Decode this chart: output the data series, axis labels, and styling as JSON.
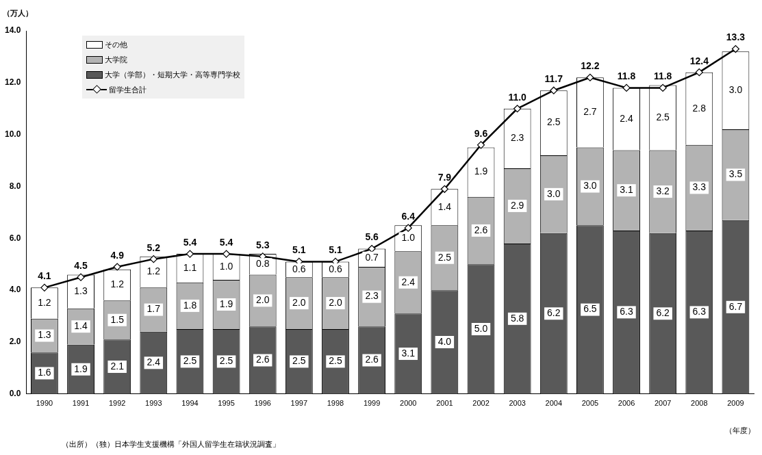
{
  "chart_data": {
    "type": "bar",
    "stacked": true,
    "ylabel": "（万人）",
    "xlabel": "（年度）",
    "categories": [
      "1990",
      "1991",
      "1992",
      "1993",
      "1994",
      "1995",
      "1996",
      "1997",
      "1998",
      "1999",
      "2000",
      "2001",
      "2002",
      "2003",
      "2004",
      "2005",
      "2006",
      "2007",
      "2008",
      "2009"
    ],
    "series": [
      {
        "name": "大学（学部）・短期大学・高等専門学校",
        "color": "#595959",
        "values": [
          1.6,
          1.9,
          2.1,
          2.4,
          2.5,
          2.5,
          2.6,
          2.5,
          2.5,
          2.6,
          3.1,
          4.0,
          5.0,
          5.8,
          6.2,
          6.5,
          6.3,
          6.2,
          6.3,
          6.7
        ],
        "value_labels": [
          "1.6",
          "1.9",
          "2.1",
          "2.4",
          "2.5",
          "2.5",
          "2.6",
          "2.5",
          "2.5",
          "2.6",
          "3.1",
          "4.0",
          "5.0",
          "5.8",
          "6.2",
          "6.5",
          "6.3",
          "6.2",
          "6.3",
          "6.7"
        ]
      },
      {
        "name": "大学院",
        "color": "#b3b3b3",
        "values": [
          1.3,
          1.4,
          1.5,
          1.7,
          1.8,
          1.9,
          2.0,
          2.0,
          2.0,
          2.3,
          2.4,
          2.5,
          2.6,
          2.9,
          3.0,
          3.0,
          3.1,
          3.2,
          3.3,
          3.5
        ],
        "value_labels": [
          "1.3",
          "1.4",
          "1.5",
          "1.7",
          "1.8",
          "1.9",
          "2.0",
          "2.0",
          "2.0",
          "2.3",
          "2.4",
          "2.5",
          "2.6",
          "2.9",
          "3.0",
          "3.0",
          "3.1",
          "3.2",
          "3.3",
          "3.5"
        ]
      },
      {
        "name": "その他",
        "color": "#ffffff",
        "values": [
          1.2,
          1.3,
          1.2,
          1.2,
          1.1,
          1.0,
          0.8,
          0.6,
          0.6,
          0.7,
          1.0,
          1.4,
          1.9,
          2.3,
          2.5,
          2.7,
          2.4,
          2.5,
          2.8,
          3.0
        ],
        "value_labels": [
          "1.2",
          "1.3",
          "1.2",
          "1.2",
          "1.1",
          "1.0",
          "0.8",
          "0.6",
          "0.6",
          "0.7",
          "1.0",
          "1.4",
          "1.9",
          "2.3",
          "2.5",
          "2.7",
          "2.4",
          "2.5",
          "2.8",
          "3.0"
        ]
      },
      {
        "name": "留学生合計",
        "type": "line",
        "color": "#000000",
        "marker": "diamond",
        "values": [
          4.1,
          4.5,
          4.9,
          5.2,
          5.4,
          5.4,
          5.3,
          5.1,
          5.1,
          5.6,
          6.4,
          7.9,
          9.6,
          11.0,
          11.7,
          12.2,
          11.8,
          11.8,
          12.4,
          13.3
        ],
        "value_labels": [
          "4.1",
          "4.5",
          "4.9",
          "5.2",
          "5.4",
          "5.4",
          "5.3",
          "5.1",
          "5.1",
          "5.6",
          "6.4",
          "7.9",
          "9.6",
          "11.0",
          "11.7",
          "12.2",
          "11.8",
          "11.8",
          "12.4",
          "13.3"
        ]
      }
    ],
    "ylim": [
      0,
      14
    ],
    "yticks": [
      {
        "value": 0,
        "label": "0.0"
      },
      {
        "value": 2,
        "label": "2.0"
      },
      {
        "value": 4,
        "label": "4.0"
      },
      {
        "value": 6,
        "label": "6.0"
      },
      {
        "value": 8,
        "label": "8.0"
      },
      {
        "value": 10,
        "label": "10.0"
      },
      {
        "value": 12,
        "label": "12.0"
      },
      {
        "value": 14,
        "label": "14.0"
      }
    ],
    "grid": false,
    "legend": "top left",
    "annotations": [
      "（出所）（独）日本学生支援機構「外国人留学生在籍状況調査」"
    ]
  }
}
